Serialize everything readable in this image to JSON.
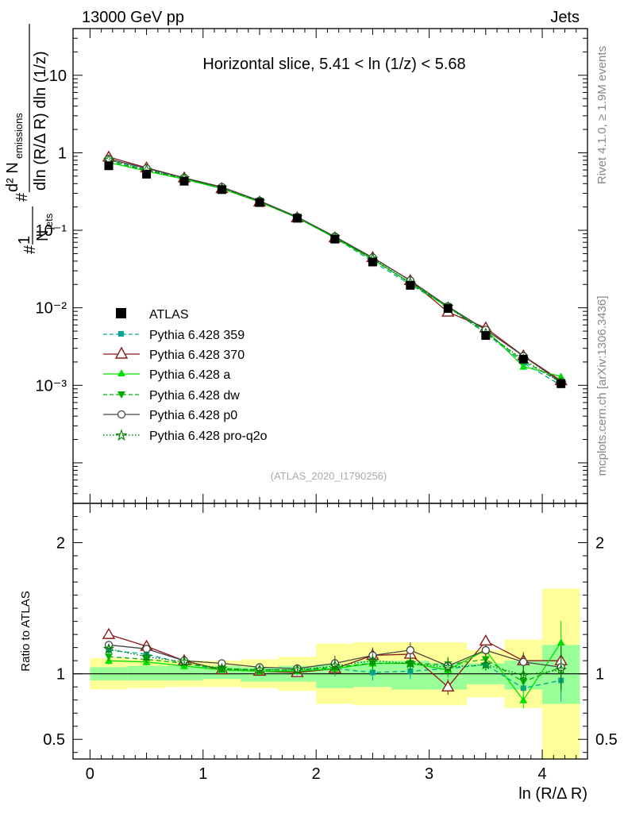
{
  "header": {
    "energy_label": "13000 GeV pp",
    "category_label": "Jets",
    "plot_title": "Horizontal slice, 5.41 < ln (1/z) < 5.68",
    "analysis_id": "(ATLAS_2020_I1790256)",
    "side_rivet": "Rivet 4.1.0, ≥ 1.9M events",
    "side_mcplots": "mcplots.cern.ch [arXiv:1306.3436]"
  },
  "chart_data": [
    {
      "type": "line",
      "panel": "main",
      "yscale": "log",
      "xlim": [
        -0.15,
        4.4
      ],
      "ylim": [
        3e-05,
        40
      ],
      "y_tick_labels": [
        "10⁻³",
        "10⁻²",
        "10⁻¹",
        "1",
        "10"
      ],
      "ylabel": "# 1/N_jets #d²N_emissions / dln(R/ΔR) dln(1/z)",
      "x": [
        0.166,
        0.5,
        0.833,
        1.166,
        1.5,
        1.833,
        2.166,
        2.5,
        2.833,
        3.166,
        3.5,
        3.833,
        4.166
      ],
      "data": {
        "name": "ATLAS",
        "values": [
          0.68,
          0.53,
          0.43,
          0.335,
          0.228,
          0.143,
          0.077,
          0.039,
          0.0195,
          0.0098,
          0.0044,
          0.00218,
          0.00105
        ]
      },
      "series": [
        {
          "name": "Pythia 6.428 359",
          "color": "#00a88f",
          "style": "dashed",
          "marker": "square",
          "values": [
            0.8,
            0.61,
            0.465,
            0.345,
            0.235,
            0.148,
            0.08,
            0.0395,
            0.02,
            0.0102,
            0.0047,
            0.00195,
            0.001
          ]
        },
        {
          "name": "Pythia 6.428 370",
          "color": "#8b1a1a",
          "style": "solid",
          "marker": "open-triangle",
          "values": [
            0.88,
            0.64,
            0.475,
            0.345,
            0.232,
            0.145,
            0.08,
            0.0445,
            0.0225,
            0.0088,
            0.0055,
            0.0024,
            0.00115
          ]
        },
        {
          "name": "Pythia 6.428 a",
          "color": "#00e000",
          "style": "solid",
          "marker": "triangle",
          "values": [
            0.75,
            0.58,
            0.455,
            0.345,
            0.233,
            0.145,
            0.08,
            0.042,
            0.021,
            0.0101,
            0.0052,
            0.00175,
            0.0013
          ]
        },
        {
          "name": "Pythia 6.428 dw",
          "color": "#00b000",
          "style": "dashed",
          "marker": "down-triangle",
          "values": [
            0.77,
            0.59,
            0.465,
            0.35,
            0.235,
            0.147,
            0.081,
            0.042,
            0.021,
            0.0105,
            0.0049,
            0.00205,
            0.0011
          ]
        },
        {
          "name": "Pythia 6.428 p0",
          "color": "#444444",
          "style": "solid",
          "marker": "open-circle",
          "values": [
            0.83,
            0.63,
            0.475,
            0.362,
            0.24,
            0.149,
            0.083,
            0.0445,
            0.0225,
            0.0104,
            0.0052,
            0.00238,
            0.0011
          ]
        },
        {
          "name": "Pythia 6.428 pro-q2o",
          "color": "#008000",
          "style": "dotted",
          "marker": "star",
          "values": [
            0.81,
            0.6,
            0.47,
            0.35,
            0.236,
            0.147,
            0.082,
            0.043,
            0.021,
            0.0103,
            0.0047,
            0.00215,
            0.00108
          ]
        }
      ]
    },
    {
      "type": "line",
      "panel": "ratio",
      "ylabel": "Ratio to ATLAS",
      "xlabel": "ln (R/Δ R)",
      "xlim": [
        -0.15,
        4.4
      ],
      "ylim": [
        0.35,
        2.3
      ],
      "x_ticks": [
        0,
        1,
        2,
        3,
        4
      ],
      "y_ticks": [
        0.5,
        1,
        2
      ],
      "x_edges": [
        0.0,
        0.333,
        0.666,
        1.0,
        1.333,
        1.666,
        2.0,
        2.333,
        2.666,
        3.0,
        3.333,
        3.666,
        4.0,
        4.333
      ],
      "band_stat": [
        [
          0.95,
          1.05
        ],
        [
          0.95,
          1.06
        ],
        [
          0.95,
          1.06
        ],
        [
          0.96,
          1.06
        ],
        [
          0.94,
          1.05
        ],
        [
          0.94,
          1.06
        ],
        [
          0.89,
          1.07
        ],
        [
          0.9,
          1.1
        ],
        [
          0.88,
          1.1
        ],
        [
          0.88,
          1.08
        ],
        [
          0.92,
          1.08
        ],
        [
          0.88,
          1.1
        ],
        [
          0.77,
          1.22
        ]
      ],
      "band_total": [
        [
          0.88,
          1.12
        ],
        [
          0.89,
          1.11
        ],
        [
          0.9,
          1.1
        ],
        [
          0.9,
          1.1
        ],
        [
          0.89,
          1.11
        ],
        [
          0.87,
          1.13
        ],
        [
          0.77,
          1.23
        ],
        [
          0.76,
          1.24
        ],
        [
          0.76,
          1.24
        ],
        [
          0.76,
          1.24
        ],
        [
          0.82,
          1.18
        ],
        [
          0.74,
          1.26
        ],
        [
          0.35,
          1.65
        ]
      ],
      "series": [
        {
          "name": "Pythia 6.428 359",
          "values": [
            1.18,
            1.15,
            1.08,
            1.03,
            1.03,
            1.03,
            1.04,
            1.01,
            1.02,
            1.04,
            1.07,
            0.89,
            0.95
          ]
        },
        {
          "name": "Pythia 6.428 370",
          "values": [
            1.3,
            1.21,
            1.1,
            1.03,
            1.02,
            1.01,
            1.04,
            1.14,
            1.15,
            0.9,
            1.25,
            1.1,
            1.1
          ]
        },
        {
          "name": "Pythia 6.428 a",
          "values": [
            1.1,
            1.09,
            1.06,
            1.03,
            1.02,
            1.02,
            1.04,
            1.08,
            1.08,
            1.03,
            1.18,
            0.8,
            1.24
          ]
        },
        {
          "name": "Pythia 6.428 dw",
          "values": [
            1.13,
            1.11,
            1.08,
            1.04,
            1.03,
            1.03,
            1.05,
            1.08,
            1.08,
            1.07,
            1.11,
            0.94,
            1.05
          ]
        },
        {
          "name": "Pythia 6.428 p0",
          "values": [
            1.22,
            1.19,
            1.1,
            1.08,
            1.05,
            1.04,
            1.08,
            1.14,
            1.18,
            1.06,
            1.18,
            1.09,
            1.05
          ]
        },
        {
          "name": "Pythia 6.428 pro-q2o",
          "values": [
            1.19,
            1.13,
            1.09,
            1.04,
            1.03,
            1.03,
            1.06,
            1.1,
            1.08,
            1.05,
            1.07,
            0.99,
            1.03
          ]
        }
      ]
    }
  ]
}
